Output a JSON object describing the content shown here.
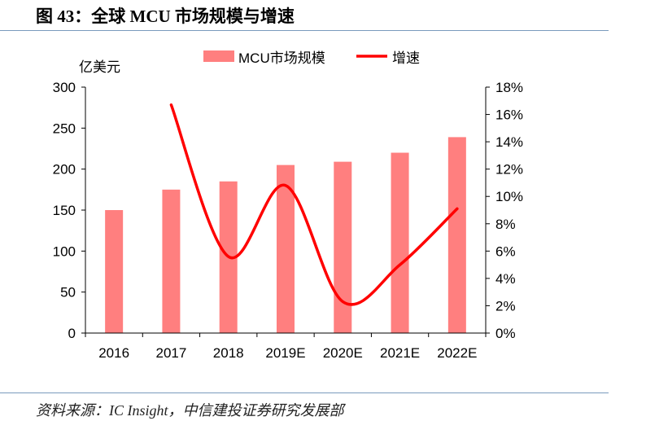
{
  "title": "图 43：全球 MCU 市场规模与增速",
  "source": "资料来源：IC Insight，中信建投证券研究发展部",
  "chart_data": {
    "type": "bar+line",
    "categories": [
      "2016",
      "2017",
      "2018",
      "2019E",
      "2020E",
      "2021E",
      "2022E"
    ],
    "series": [
      {
        "name": "MCU市场规模",
        "type": "bar",
        "axis": "left",
        "color": "#ff7f7f",
        "values": [
          150,
          175,
          185,
          205,
          209,
          220,
          239
        ]
      },
      {
        "name": "增速",
        "type": "line",
        "axis": "right",
        "color": "#ff0000",
        "values": [
          null,
          16.7,
          5.6,
          10.8,
          2.3,
          5.0,
          9.1
        ]
      }
    ],
    "left_axis": {
      "label": "亿美元",
      "ylim": [
        0,
        300
      ],
      "ticks": [
        "0",
        "50",
        "100",
        "150",
        "200",
        "250",
        "300"
      ]
    },
    "right_axis": {
      "ylim": [
        0,
        18
      ],
      "ticks": [
        "0%",
        "2%",
        "4%",
        "6%",
        "8%",
        "10%",
        "12%",
        "14%",
        "16%",
        "18%"
      ]
    },
    "legend_position": "top",
    "grid": false
  }
}
